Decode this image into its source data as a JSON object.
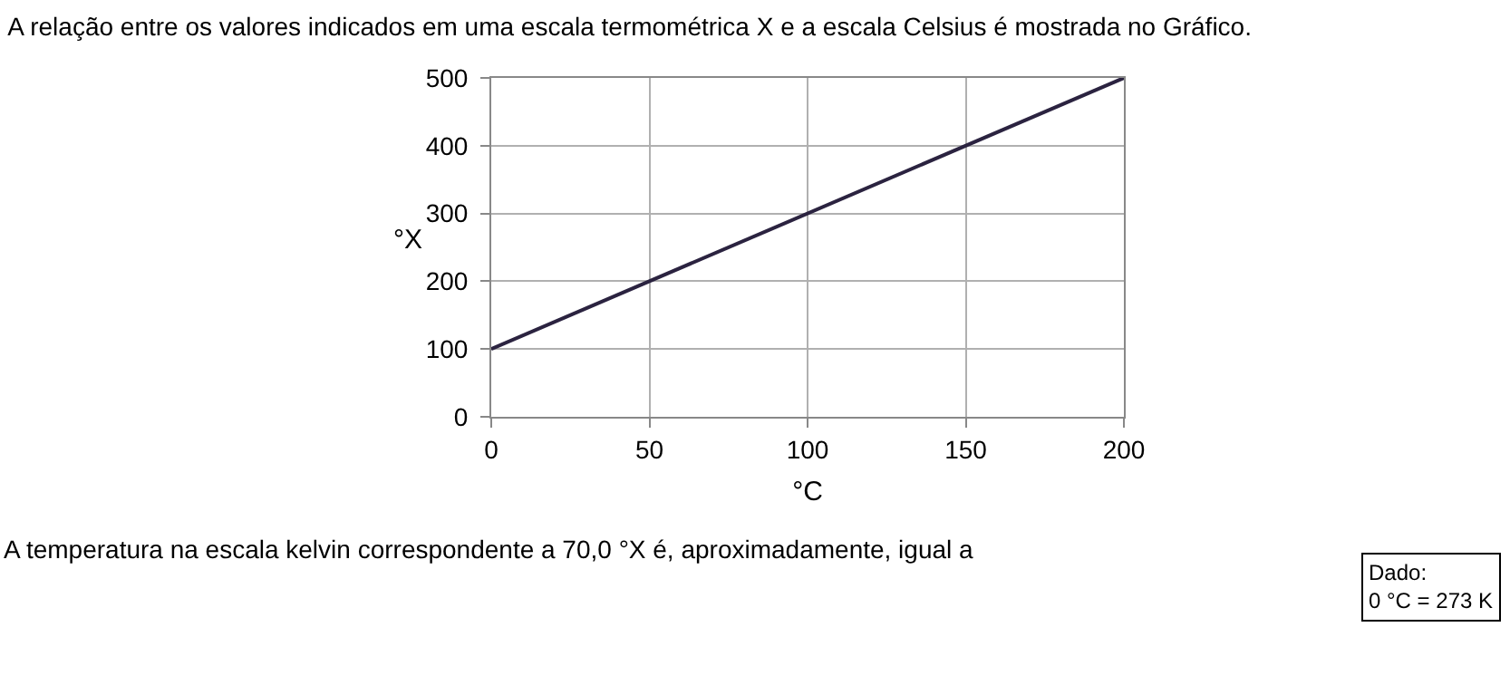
{
  "chart_data": {
    "type": "line",
    "title": "A relação entre os valores indicados em uma escala termométrica X e a escala Celsius é mostrada no Gráfico.",
    "xlabel": "°C",
    "ylabel": "°X",
    "x": [
      0,
      200
    ],
    "series": [
      {
        "color": "#2b2340",
        "values": [
          100,
          500
        ]
      }
    ],
    "xlim": [
      0,
      200
    ],
    "xticks": [
      0,
      50,
      100,
      150,
      200
    ],
    "ylim": [
      0,
      500
    ],
    "yticks": [
      0,
      100,
      200,
      300,
      400,
      500
    ],
    "grid": true,
    "marker": "none",
    "line_style": "solid",
    "annotations": [
      "A temperatura na escala kelvin correspondente a 70,0 °X é, aproximadamente, igual a",
      "Dado:\n0 °C = 273 K"
    ]
  }
}
